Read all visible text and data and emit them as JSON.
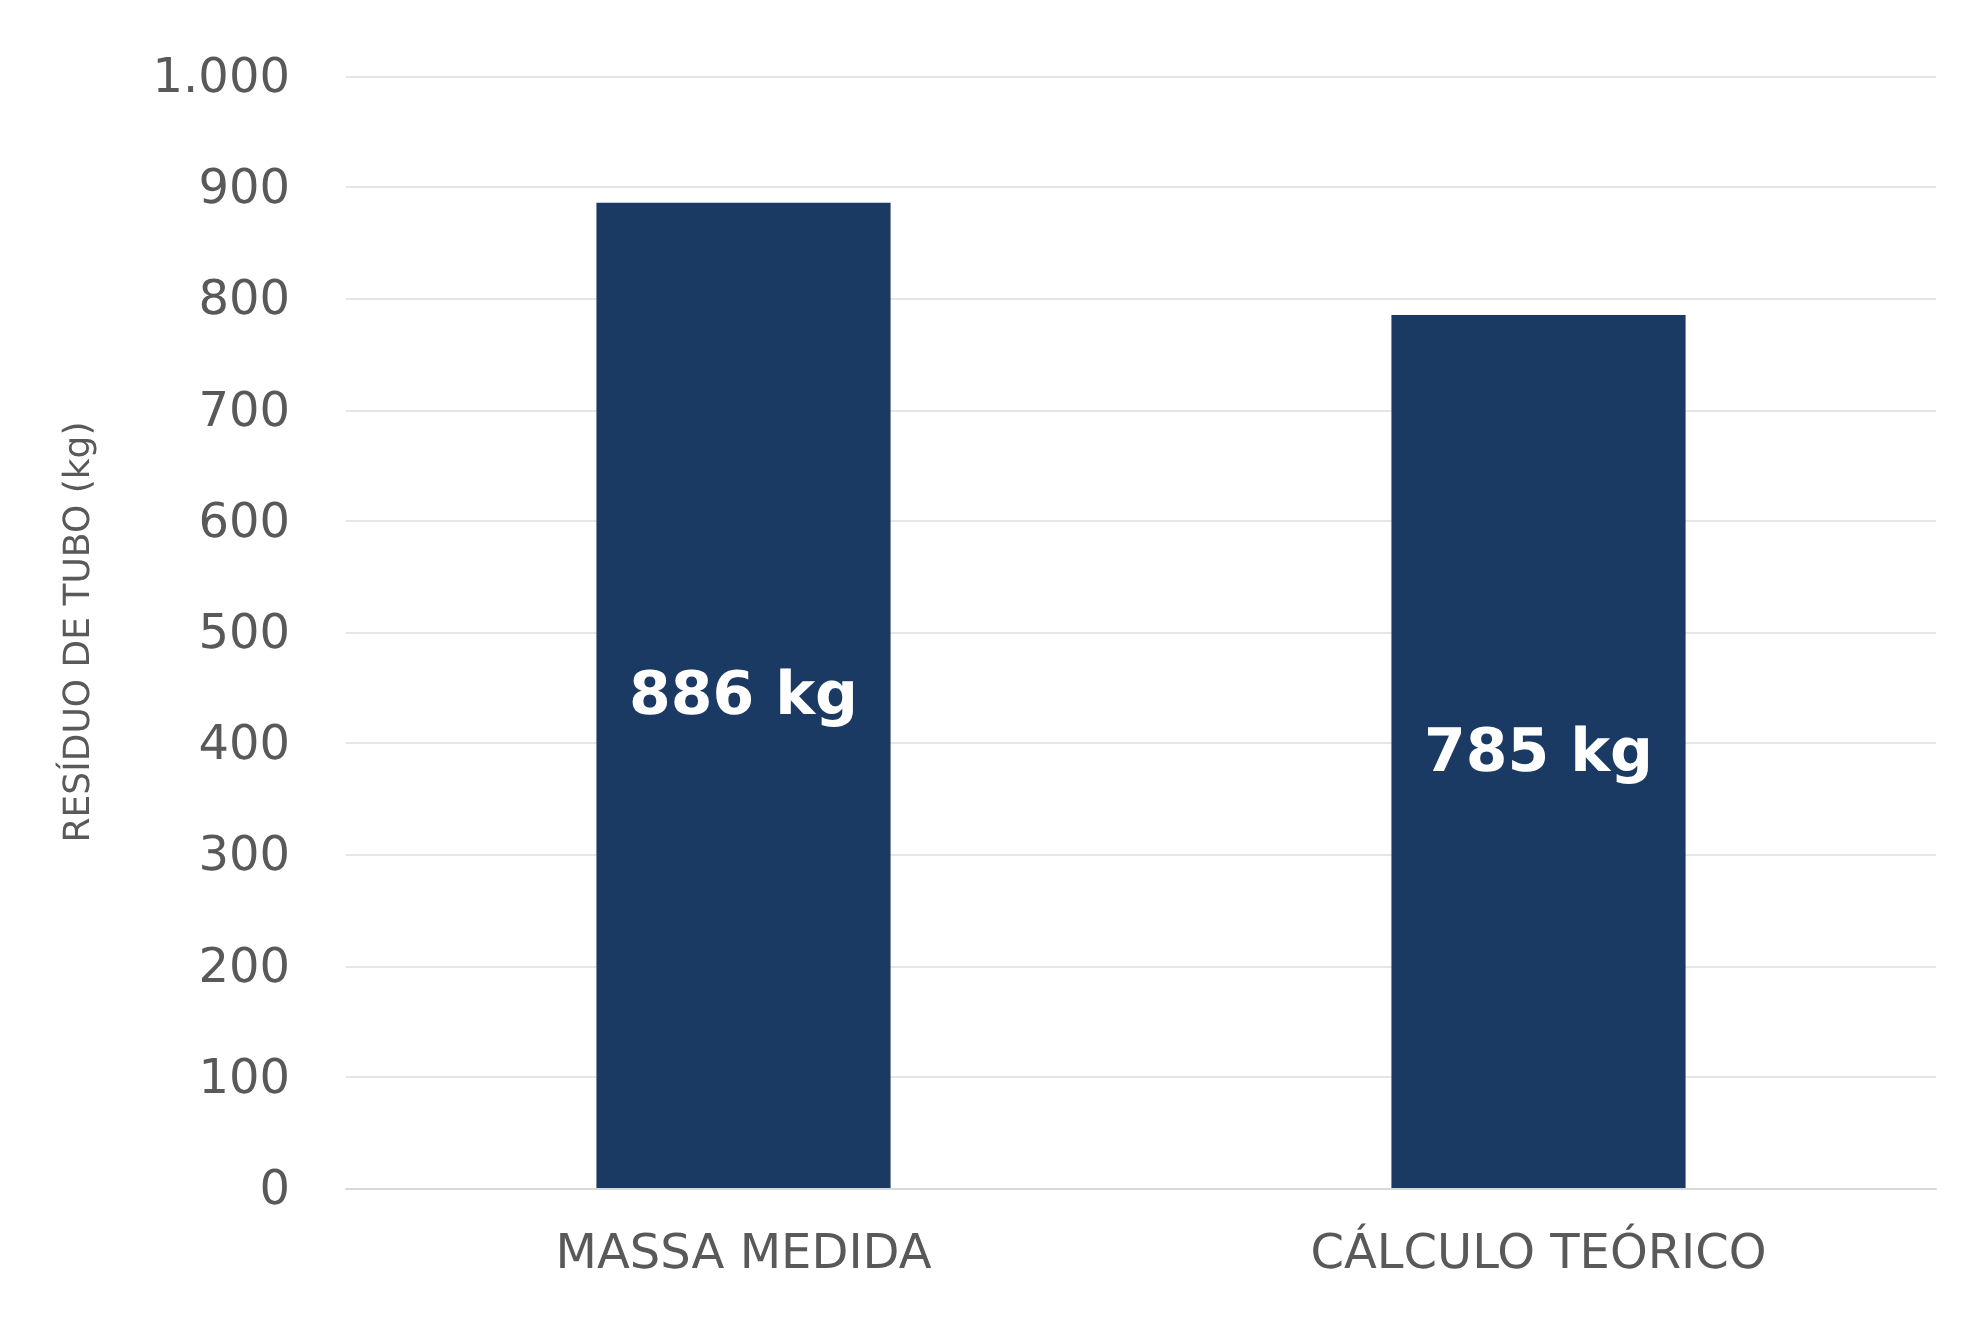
{
  "chart_data": {
    "type": "bar",
    "ylabel": "RESÍDUO DE TUBO (kg)",
    "categories": [
      "MASSA MEDIDA",
      "CÁLCULO TEÓRICO"
    ],
    "values": [
      886,
      785
    ],
    "value_labels": [
      "886 kg",
      "785 kg"
    ],
    "color": "#1b3a63",
    "ylim": [
      0,
      1000
    ],
    "yticks": [
      0,
      100,
      200,
      300,
      400,
      500,
      600,
      700,
      800,
      900,
      {
        "value": 1000,
        "label": "1.000"
      }
    ],
    "grid": "y"
  }
}
